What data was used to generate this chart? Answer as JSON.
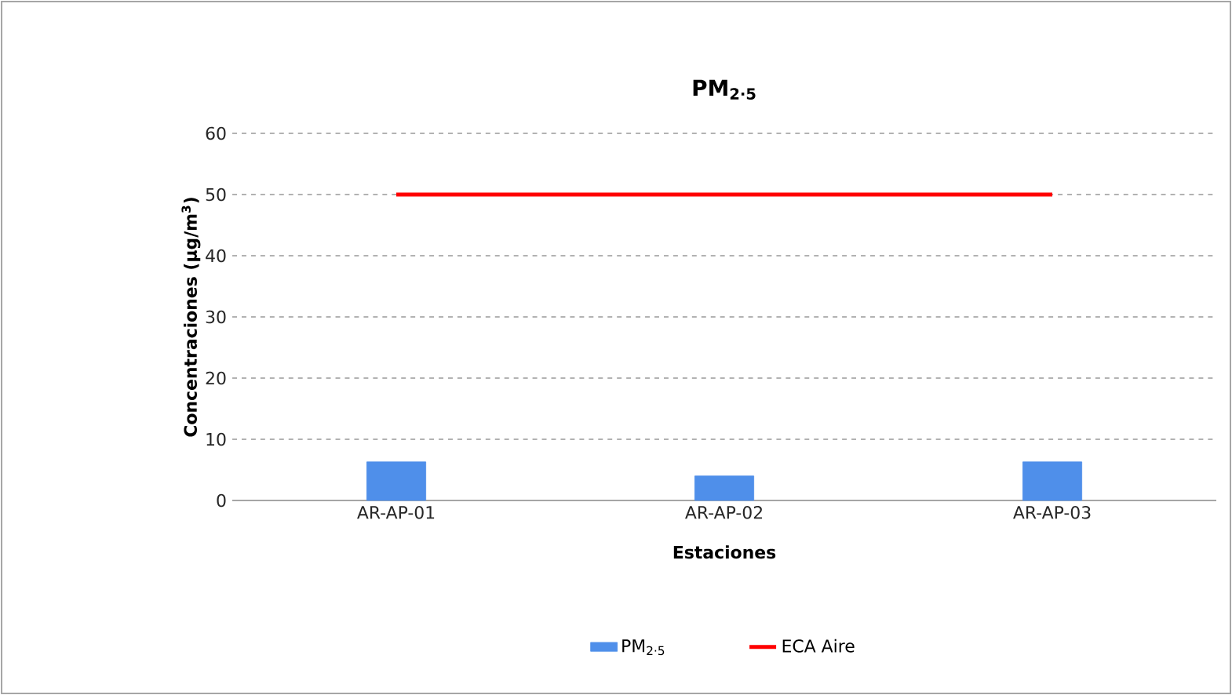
{
  "chart_data": {
    "type": "bar",
    "title": "PM$_{2·5}$",
    "xlabel": "Estaciones",
    "ylabel": "Concentraciones (µg/m$^{3}$)",
    "categories": [
      "AR-AP-01",
      "AR-AP-02",
      "AR-AP-03"
    ],
    "series": [
      {
        "name": "PM$_{2·5}$",
        "color": "#4f8fea",
        "values": [
          6.3,
          4.0,
          6.3
        ]
      },
      {
        "name": "ECA Aire",
        "type": "line",
        "color": "#ff0000",
        "values": [
          50,
          50,
          50
        ]
      }
    ],
    "ylim": [
      0,
      60
    ],
    "yticks": [
      0,
      10,
      20,
      30,
      40,
      50,
      60
    ],
    "grid": "y",
    "legend": "bottom"
  }
}
